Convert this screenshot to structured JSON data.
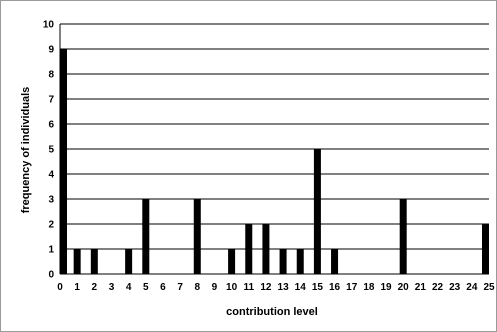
{
  "chart_data": {
    "type": "bar",
    "title": "",
    "xlabel": "contribution level",
    "ylabel": "frequency of individuals",
    "categories": [
      "0",
      "1",
      "2",
      "3",
      "4",
      "5",
      "6",
      "7",
      "8",
      "9",
      "10",
      "11",
      "12",
      "13",
      "14",
      "15",
      "16",
      "17",
      "18",
      "19",
      "20",
      "21",
      "22",
      "23",
      "24",
      "25"
    ],
    "values": [
      9,
      1,
      1,
      0,
      1,
      3,
      0,
      0,
      3,
      0,
      1,
      2,
      2,
      1,
      1,
      5,
      1,
      0,
      0,
      0,
      3,
      0,
      0,
      0,
      0,
      2
    ],
    "yticks": [
      "0",
      "1",
      "2",
      "3",
      "4",
      "5",
      "6",
      "7",
      "8",
      "9",
      "10"
    ],
    "ylim": [
      0,
      10
    ],
    "grid": true,
    "legend": "none",
    "colors": {
      "bar": "#000000",
      "grid": "#000000",
      "background": "#ffffff",
      "frame": "#9a9a9a"
    }
  }
}
